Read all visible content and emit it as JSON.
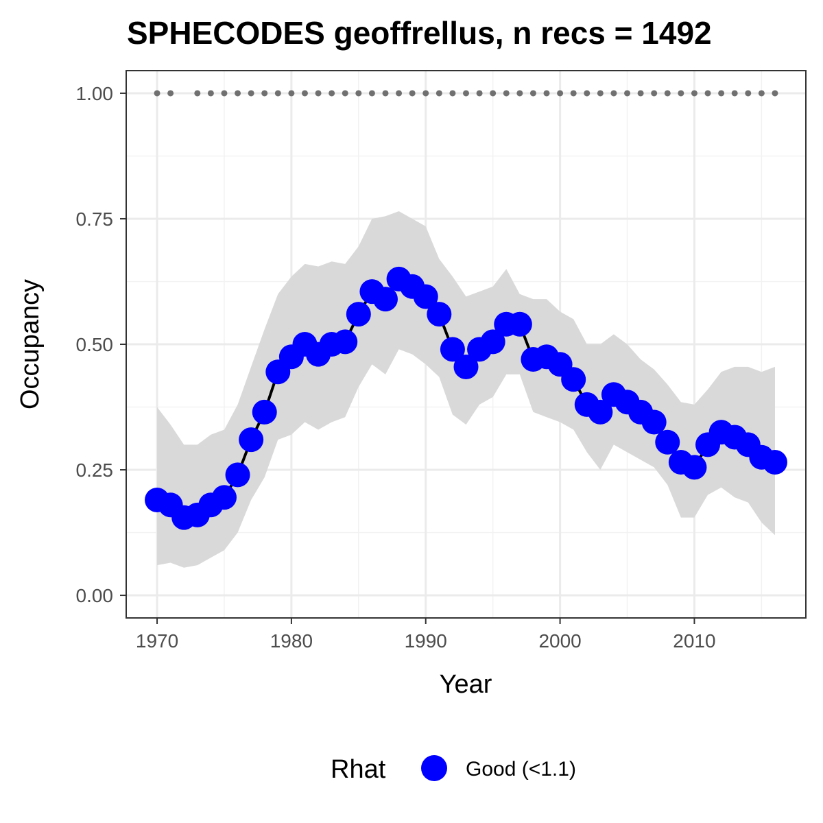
{
  "chart_data": {
    "type": "line",
    "title": "SPHECODES geoffrellus, n recs = 1492",
    "xlabel": "Year",
    "ylabel": "Occupancy",
    "xlim": [
      1967.7,
      2018.3
    ],
    "ylim": [
      -0.045,
      1.045
    ],
    "x_ticks": [
      1970,
      1980,
      1990,
      2000,
      2010
    ],
    "x_tick_labels": [
      "1970",
      "1980",
      "1990",
      "2000",
      "2010"
    ],
    "y_ticks": [
      0,
      0.25,
      0.5,
      0.75,
      1.0
    ],
    "y_tick_labels": [
      "0.00",
      "0.25",
      "0.50",
      "0.75",
      "1.00"
    ],
    "grid": true,
    "legend": {
      "title": "Rhat",
      "position": "bottom",
      "entries": [
        {
          "label": "Good (<1.1)",
          "color": "#0000ff"
        }
      ]
    },
    "colors": {
      "points": "#0000ff",
      "line": "#000000",
      "ribbon": "#d9d9d9",
      "dots": "#707070"
    },
    "x": [
      1970,
      1971,
      1972,
      1973,
      1974,
      1975,
      1976,
      1977,
      1978,
      1979,
      1980,
      1981,
      1982,
      1983,
      1984,
      1985,
      1986,
      1987,
      1988,
      1989,
      1990,
      1991,
      1992,
      1993,
      1994,
      1995,
      1996,
      1997,
      1998,
      1999,
      2000,
      2001,
      2002,
      2003,
      2004,
      2005,
      2006,
      2007,
      2008,
      2009,
      2010,
      2011,
      2012,
      2013,
      2014,
      2015,
      2016
    ],
    "series": [
      {
        "name": "Good (<1.1)",
        "role": "mean",
        "values": [
          0.19,
          0.18,
          0.155,
          0.16,
          0.18,
          0.195,
          0.24,
          0.31,
          0.365,
          0.445,
          0.475,
          0.5,
          0.48,
          0.5,
          0.505,
          0.56,
          0.605,
          0.59,
          0.63,
          0.615,
          0.595,
          0.56,
          0.49,
          0.455,
          0.49,
          0.505,
          0.54,
          0.54,
          0.47,
          0.475,
          0.46,
          0.43,
          0.38,
          0.365,
          0.4,
          0.385,
          0.365,
          0.345,
          0.305,
          0.265,
          0.255,
          0.3,
          0.325,
          0.315,
          0.3,
          0.275,
          0.265
        ]
      },
      {
        "role": "ribbon_upper",
        "values": [
          0.375,
          0.34,
          0.3,
          0.3,
          0.32,
          0.33,
          0.38,
          0.455,
          0.53,
          0.6,
          0.635,
          0.66,
          0.655,
          0.665,
          0.66,
          0.695,
          0.75,
          0.755,
          0.765,
          0.75,
          0.735,
          0.67,
          0.635,
          0.595,
          0.605,
          0.615,
          0.65,
          0.6,
          0.59,
          0.59,
          0.565,
          0.55,
          0.5,
          0.5,
          0.52,
          0.5,
          0.47,
          0.45,
          0.42,
          0.385,
          0.38,
          0.41,
          0.445,
          0.455,
          0.455,
          0.445,
          0.455
        ]
      },
      {
        "role": "ribbon_lower",
        "values": [
          0.06,
          0.065,
          0.055,
          0.06,
          0.075,
          0.09,
          0.125,
          0.19,
          0.235,
          0.31,
          0.32,
          0.345,
          0.33,
          0.345,
          0.355,
          0.415,
          0.46,
          0.44,
          0.49,
          0.48,
          0.46,
          0.435,
          0.36,
          0.34,
          0.38,
          0.395,
          0.44,
          0.44,
          0.365,
          0.355,
          0.345,
          0.33,
          0.285,
          0.25,
          0.3,
          0.285,
          0.27,
          0.255,
          0.22,
          0.155,
          0.155,
          0.2,
          0.215,
          0.195,
          0.185,
          0.145,
          0.12
        ]
      },
      {
        "role": "record_years",
        "x": [
          1970,
          1971,
          1973,
          1974,
          1975,
          1976,
          1977,
          1978,
          1979,
          1980,
          1981,
          1982,
          1983,
          1984,
          1985,
          1986,
          1987,
          1988,
          1989,
          1990,
          1991,
          1992,
          1993,
          1994,
          1995,
          1996,
          1997,
          1998,
          1999,
          2000,
          2001,
          2002,
          2003,
          2004,
          2005,
          2006,
          2007,
          2008,
          2009,
          2010,
          2011,
          2012,
          2013,
          2014,
          2015,
          2016
        ],
        "y": 1.0
      }
    ]
  }
}
